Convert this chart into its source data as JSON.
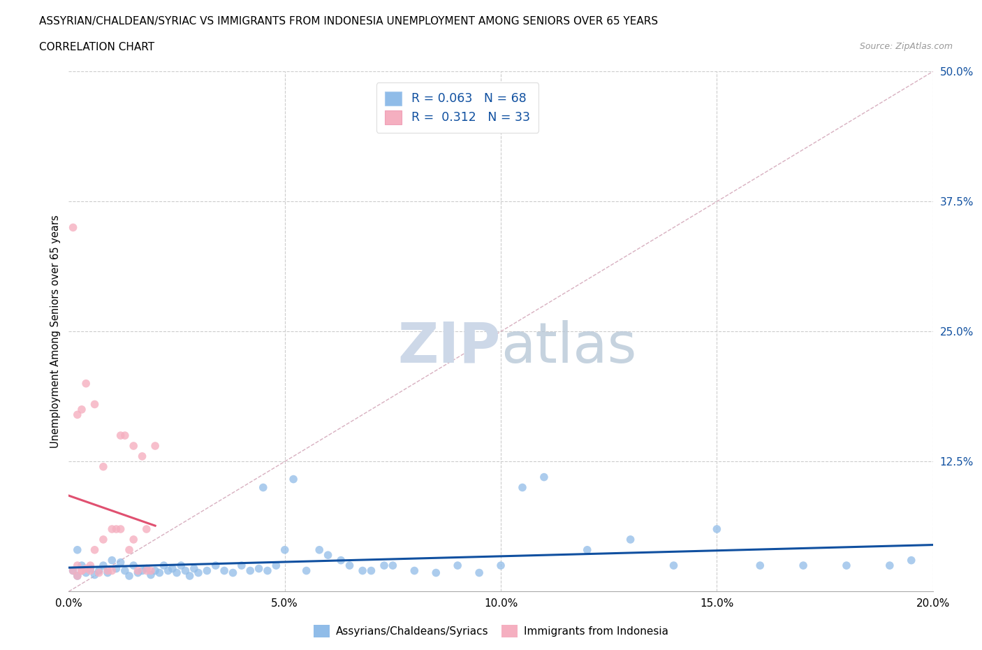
{
  "title_line1": "ASSYRIAN/CHALDEAN/SYRIAC VS IMMIGRANTS FROM INDONESIA UNEMPLOYMENT AMONG SENIORS OVER 65 YEARS",
  "title_line2": "CORRELATION CHART",
  "source_text": "Source: ZipAtlas.com",
  "ylabel": "Unemployment Among Seniors over 65 years",
  "xlim": [
    0.0,
    0.2
  ],
  "ylim": [
    0.0,
    0.5
  ],
  "xtick_labels": [
    "0.0%",
    "5.0%",
    "10.0%",
    "15.0%",
    "20.0%"
  ],
  "xtick_vals": [
    0.0,
    0.05,
    0.1,
    0.15,
    0.2
  ],
  "ytick_labels": [
    "12.5%",
    "25.0%",
    "37.5%",
    "50.0%"
  ],
  "ytick_vals": [
    0.125,
    0.25,
    0.375,
    0.5
  ],
  "blue_color": "#90bce8",
  "pink_color": "#f5afc0",
  "blue_line_color": "#1050a0",
  "pink_line_color": "#e05070",
  "diag_color": "#d0b8c8",
  "R_blue": 0.063,
  "N_blue": 68,
  "R_pink": 0.312,
  "N_pink": 33,
  "legend_label_blue": "Assyrians/Chaldeans/Syriacs",
  "legend_label_pink": "Immigrants from Indonesia",
  "blue_scatter_x": [
    0.001,
    0.002,
    0.003,
    0.004,
    0.005,
    0.006,
    0.007,
    0.008,
    0.009,
    0.01,
    0.011,
    0.012,
    0.013,
    0.014,
    0.015,
    0.016,
    0.017,
    0.018,
    0.019,
    0.02,
    0.021,
    0.022,
    0.023,
    0.024,
    0.025,
    0.026,
    0.027,
    0.028,
    0.029,
    0.03,
    0.032,
    0.034,
    0.036,
    0.038,
    0.04,
    0.042,
    0.044,
    0.046,
    0.048,
    0.05,
    0.055,
    0.06,
    0.065,
    0.07,
    0.075,
    0.08,
    0.085,
    0.09,
    0.095,
    0.1,
    0.045,
    0.052,
    0.058,
    0.063,
    0.068,
    0.073,
    0.105,
    0.11,
    0.12,
    0.13,
    0.14,
    0.15,
    0.16,
    0.17,
    0.18,
    0.19,
    0.195,
    0.002
  ],
  "blue_scatter_y": [
    0.02,
    0.015,
    0.025,
    0.018,
    0.022,
    0.016,
    0.02,
    0.025,
    0.018,
    0.03,
    0.022,
    0.028,
    0.02,
    0.015,
    0.025,
    0.018,
    0.02,
    0.022,
    0.016,
    0.02,
    0.018,
    0.025,
    0.02,
    0.022,
    0.018,
    0.025,
    0.02,
    0.015,
    0.022,
    0.018,
    0.02,
    0.025,
    0.02,
    0.018,
    0.025,
    0.02,
    0.022,
    0.02,
    0.025,
    0.04,
    0.02,
    0.035,
    0.025,
    0.02,
    0.025,
    0.02,
    0.018,
    0.025,
    0.018,
    0.025,
    0.1,
    0.108,
    0.04,
    0.03,
    0.02,
    0.025,
    0.1,
    0.11,
    0.04,
    0.05,
    0.025,
    0.06,
    0.025,
    0.025,
    0.025,
    0.025,
    0.03,
    0.04
  ],
  "pink_scatter_x": [
    0.001,
    0.002,
    0.003,
    0.004,
    0.005,
    0.006,
    0.007,
    0.008,
    0.009,
    0.01,
    0.011,
    0.012,
    0.013,
    0.014,
    0.015,
    0.016,
    0.017,
    0.018,
    0.019,
    0.02,
    0.002,
    0.003,
    0.004,
    0.005,
    0.006,
    0.008,
    0.01,
    0.012,
    0.015,
    0.018,
    0.001,
    0.002,
    0.003
  ],
  "pink_scatter_y": [
    0.02,
    0.025,
    0.02,
    0.022,
    0.025,
    0.04,
    0.018,
    0.05,
    0.02,
    0.06,
    0.06,
    0.06,
    0.15,
    0.04,
    0.05,
    0.02,
    0.13,
    0.06,
    0.02,
    0.14,
    0.17,
    0.175,
    0.2,
    0.02,
    0.18,
    0.12,
    0.02,
    0.15,
    0.14,
    0.02,
    0.35,
    0.015,
    0.02
  ]
}
